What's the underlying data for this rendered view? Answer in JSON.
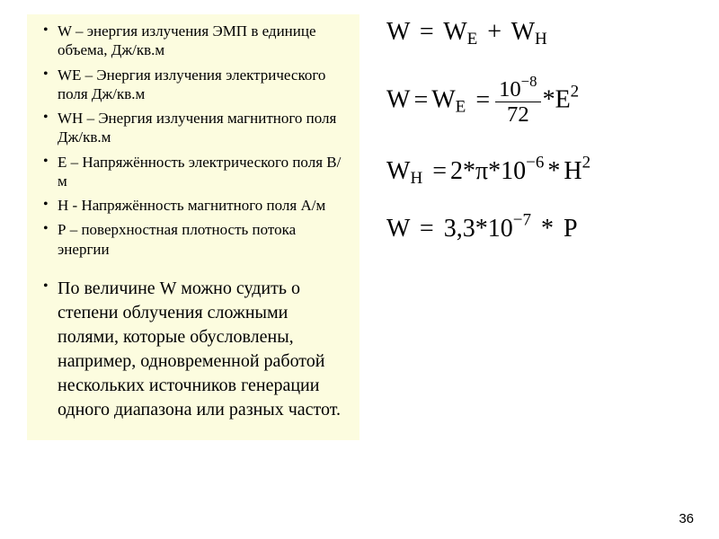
{
  "left": {
    "bg": "#fcfcdf",
    "items": [
      "W – энергия излучения ЭМП в единице объема, Дж/кв.м",
      "WE – Энергия излучения электрического поля Дж/кв.м",
      "WH – Энергия излучения магнитного поля Дж/кв.м",
      "Е – Напряжённость электрического поля В/м",
      "Н - Напряжённость магнитного поля А/м",
      "Р – поверхностная плотность потока энергии"
    ],
    "conclusion": "По величине W можно судить о степени облучения сложными полями, которые обусловлены, например, одновременной работой нескольких источников генерации одного диапазона или разных частот."
  },
  "equations": {
    "eq1": {
      "W": "W",
      "eq": "=",
      "WE": "W",
      "WE_sub": "E",
      "plus": "+",
      "WH": "W",
      "WH_sub": "H"
    },
    "eq2": {
      "W": "W",
      "eq": "=",
      "WE": "W",
      "WE_sub": "E",
      "eq2": "=",
      "num": "10",
      "num_exp": "−8",
      "den": "72",
      "mul": "*",
      "E": "E",
      "E_exp": "2"
    },
    "eq3": {
      "WH": "W",
      "WH_sub": "H",
      "eq": "=",
      "two": "2",
      "m1": "*",
      "pi": "π",
      "m2": "*",
      "ten": "10",
      "ten_exp": "−6",
      "m3": "*",
      "H": "H",
      "H_exp": "2"
    },
    "eq4": {
      "W": "W",
      "eq": "=",
      "c": "3,3",
      "m1": "*",
      "ten": "10",
      "ten_exp": "−7",
      "m2": "*",
      "P": "P"
    }
  },
  "pagenum": "36",
  "style": {
    "bullet_fontsize": 17,
    "conclusion_fontsize": 20,
    "eq_fontsize": 28,
    "text_color": "#000000",
    "page_bg": "#ffffff"
  }
}
